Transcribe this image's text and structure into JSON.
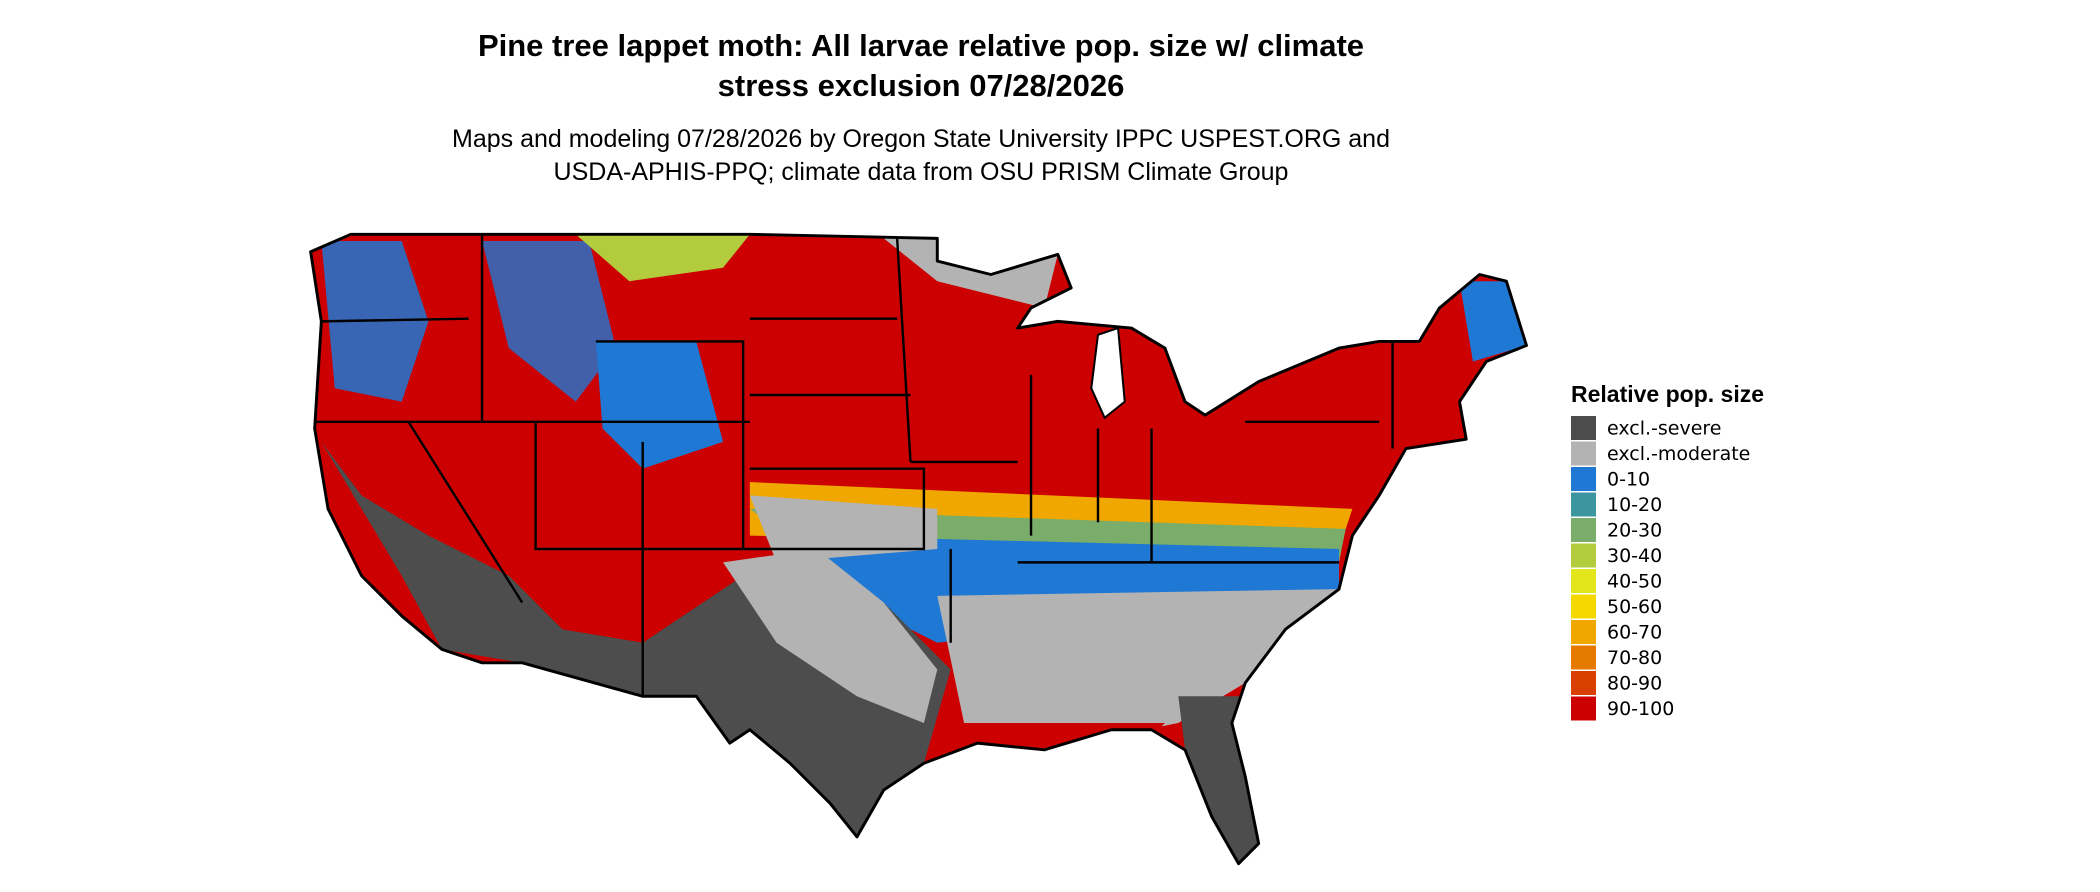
{
  "title": [
    "Pine tree lappet moth: All larvae relative pop. size w/ climate",
    "stress exclusion 07/28/2026"
  ],
  "subtitle": [
    "Maps and modeling 07/28/2026 by Oregon State University IPPC USPEST.ORG and",
    "USDA-APHIS-PPQ; climate data from OSU PRISM Climate Group"
  ],
  "legend": {
    "title": "Relative pop. size",
    "items": [
      {
        "label": "excl.-severe",
        "color": "#4d4d4d"
      },
      {
        "label": "excl.-moderate",
        "color": "#b3b3b3"
      },
      {
        "label": "0-10",
        "color": "#1f78d4"
      },
      {
        "label": "10-20",
        "color": "#3b96a0"
      },
      {
        "label": "20-30",
        "color": "#7aac6a"
      },
      {
        "label": "30-40",
        "color": "#b2cc3e"
      },
      {
        "label": "40-50",
        "color": "#e3e61a"
      },
      {
        "label": "50-60",
        "color": "#f5d800"
      },
      {
        "label": "60-70",
        "color": "#f0a800"
      },
      {
        "label": "70-80",
        "color": "#e67a00"
      },
      {
        "label": "80-90",
        "color": "#d94000"
      },
      {
        "label": "90-100",
        "color": "#cc0000"
      }
    ]
  }
}
